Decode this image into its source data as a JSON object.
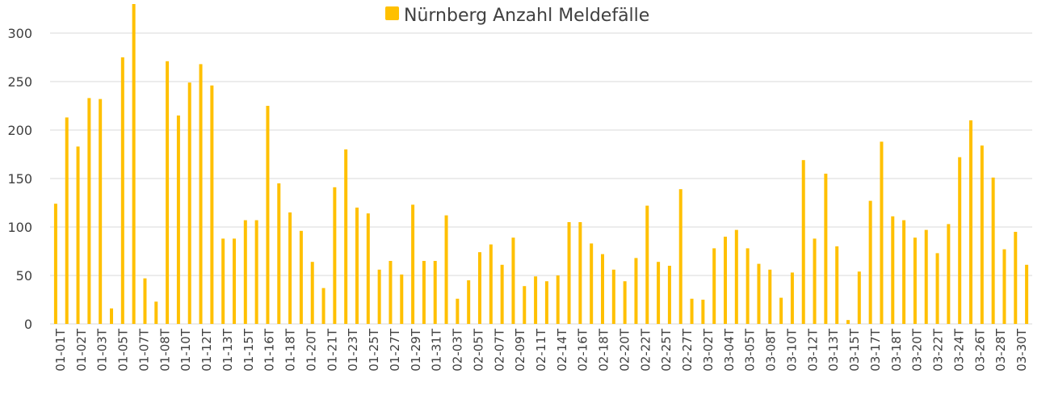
{
  "chart_data": {
    "type": "bar",
    "legend": {
      "label": "Nürnberg Anzahl Meldefälle",
      "position": "top"
    },
    "colors": {
      "series": "#FFC000",
      "grid": "#D9D9D9",
      "text": "#404040"
    },
    "ylim": [
      0,
      330
    ],
    "yticks": [
      0,
      50,
      100,
      150,
      200,
      250,
      300
    ],
    "grid": true,
    "x_tick_labels": [
      "01-01T",
      "01-02T",
      "01-03T",
      "01-05T",
      "01-07T",
      "01-08T",
      "01-10T",
      "01-12T",
      "01-13T",
      "01-15T",
      "01-16T",
      "01-18T",
      "01-20T",
      "01-21T",
      "01-23T",
      "01-25T",
      "01-27T",
      "01-29T",
      "01-31T",
      "02-03T",
      "02-05T",
      "02-07T",
      "02-09T",
      "02-11T",
      "02-14T",
      "02-16T",
      "02-18T",
      "02-20T",
      "02-22T",
      "02-25T",
      "02-27T",
      "03-02T",
      "03-04T",
      "03-05T",
      "03-08T",
      "03-10T",
      "03-12T",
      "03-13T",
      "03-15T",
      "03-17T",
      "03-18T",
      "03-20T",
      "03-22T",
      "03-24T",
      "03-26T",
      "03-28T",
      "03-30T"
    ],
    "series": [
      {
        "name": "Nürnberg Anzahl Meldefälle",
        "values": [
          124,
          213,
          183,
          233,
          232,
          16,
          275,
          330,
          47,
          23,
          271,
          215,
          249,
          268,
          246,
          88,
          88,
          107,
          107,
          225,
          145,
          115,
          96,
          64,
          37,
          141,
          180,
          120,
          114,
          56,
          65,
          51,
          123,
          65,
          65,
          112,
          26,
          45,
          74,
          82,
          61,
          89,
          39,
          49,
          44,
          50,
          105,
          105,
          83,
          72,
          56,
          44,
          68,
          122,
          64,
          60,
          139,
          26,
          25,
          78,
          90,
          97,
          78,
          62,
          56,
          27,
          53,
          169,
          88,
          155,
          80,
          4,
          54,
          127,
          188,
          111,
          107,
          89,
          97,
          73,
          103,
          172,
          210,
          184,
          151,
          77,
          95,
          61
        ]
      }
    ]
  }
}
